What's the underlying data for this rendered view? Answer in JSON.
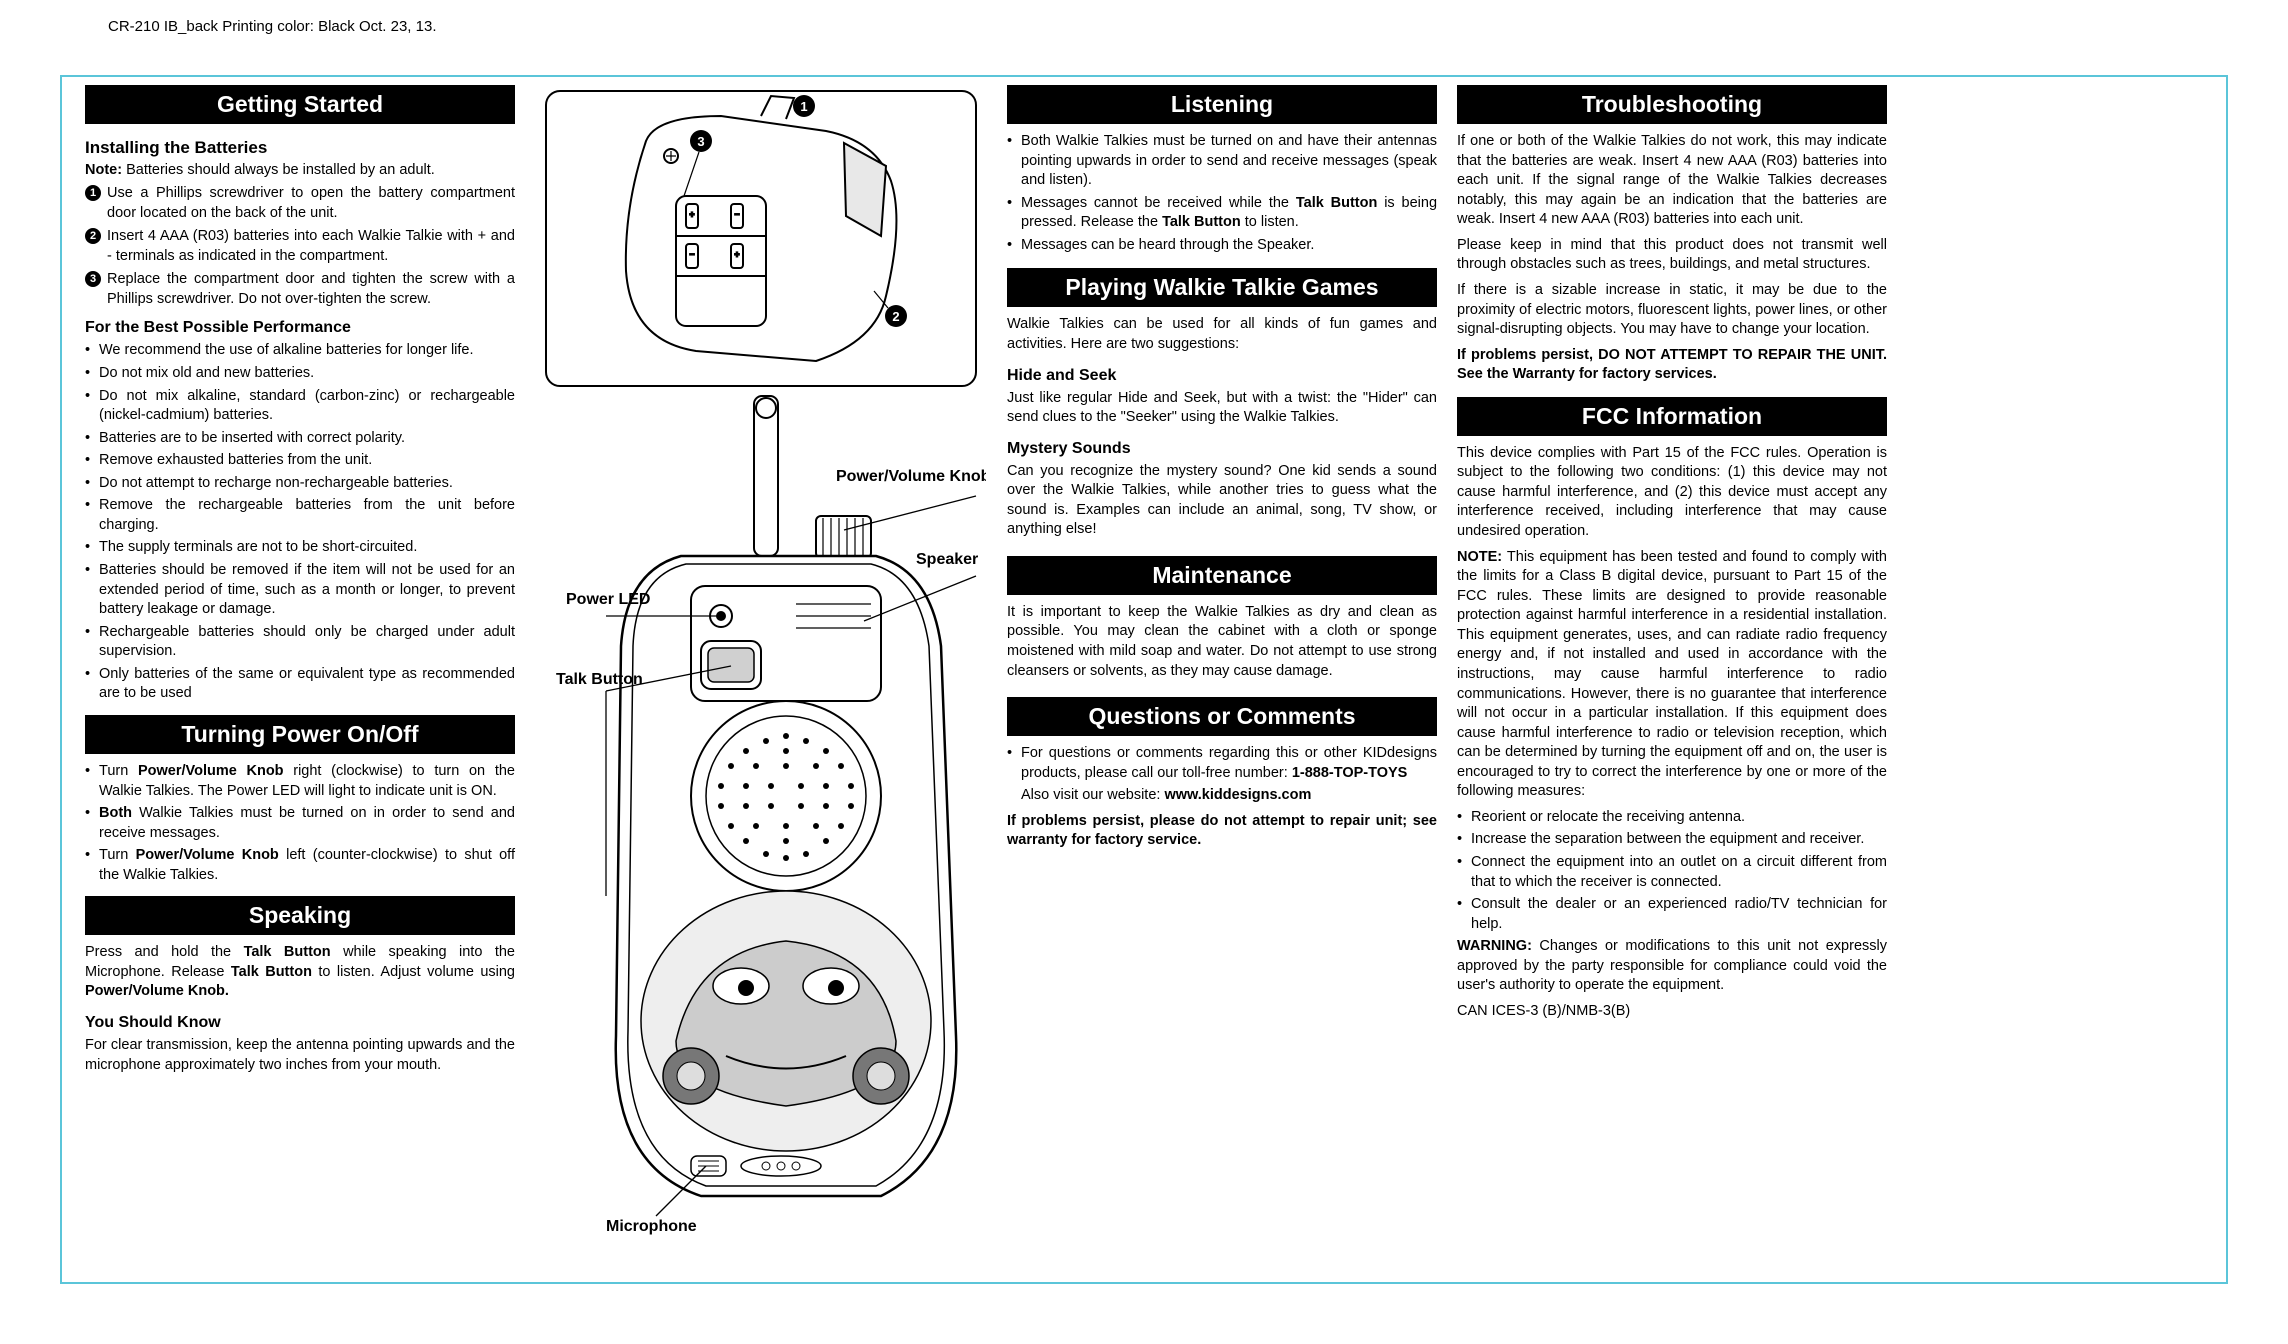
{
  "meta": {
    "header_note": "CR-210 IB_back   Printing color: Black   Oct. 23, 13."
  },
  "col1": {
    "getting_started": {
      "title": "Getting Started",
      "subtitle": "Installing the Batteries",
      "note_prefix": "Note:",
      "note": " Batteries should always be installed by an adult.",
      "steps": [
        "Use a Phillips screwdriver to open the battery compartment door located on the back of the unit.",
        "Insert 4 AAA (R03) batteries into each Walkie Talkie with + and - terminals as indicated in the compartment.",
        "Replace the compartment door and tighten the screw with a Phillips screwdriver. Do not over-tighten the screw."
      ],
      "best_perf_title": "For the Best Possible Performance",
      "best_perf": [
        "We recommend the use of alkaline batteries for longer life.",
        "Do not mix old and new batteries.",
        "Do not mix alkaline, standard (carbon-zinc) or rechargeable (nickel-cadmium) batteries.",
        "Batteries are to be inserted with correct polarity.",
        "Remove exhausted batteries from the unit.",
        "Do not attempt to recharge non-rechargeable batteries.",
        "Remove the rechargeable batteries from the unit before charging.",
        "The supply terminals are not to be short-circuited.",
        "Batteries should be removed if the item will not be used for an extended period of time, such as a month or longer, to prevent battery leakage or damage.",
        "Rechargeable batteries should only be charged under adult supervision.",
        "Only batteries of the same or equivalent type as recommended are to be used"
      ]
    },
    "power": {
      "title": "Turning Power On/Off",
      "items_html": [
        "Turn <b>Power/Volume Knob</b> right (clockwise) to turn on the Walkie Talkies. The Power LED will light to indicate unit is ON.",
        "<b>Both</b> Walkie Talkies must be turned on in order to send and receive messages.",
        "Turn <b>Power/Volume Knob</b> left (counter-clockwise) to shut off the Walkie Talkies."
      ]
    },
    "speaking": {
      "title": "Speaking",
      "para_html": "Press and hold the <b>Talk Button</b> while speaking into the Microphone. Release <b>Talk Button</b> to listen. Adjust volume using <b>Power/Volume Knob.</b>",
      "know_title": "You Should Know",
      "know_text": "For clear transmission, keep the antenna pointing upwards and the microphone approximately two inches from your mouth."
    }
  },
  "diagram": {
    "labels": {
      "power_volume": "Power/Volume Knob",
      "speaker": "Speaker",
      "power_led": "Power LED",
      "talk_button": "Talk Button",
      "microphone": "Microphone"
    },
    "callouts": {
      "n1": "1",
      "n2": "2",
      "n3": "3"
    },
    "colors": {
      "stroke": "#000000",
      "fill": "#ffffff",
      "shade": "#d9d9d9"
    }
  },
  "col3": {
    "listening": {
      "title": "Listening",
      "items_html": [
        "Both Walkie Talkies must be turned on and have their antennas pointing upwards in order to send and receive messages (speak and listen).",
        "Messages cannot be received while the <b>Talk Button</b> is being pressed. Release the <b>Talk Button</b> to listen.",
        "Messages can be heard through the Speaker."
      ]
    },
    "games": {
      "title": "Playing Walkie Talkie Games",
      "intro": "Walkie Talkies can be used for all kinds of fun games and activities. Here are two suggestions:",
      "hide_title": "Hide and Seek",
      "hide_text": "Just like regular Hide and Seek, but with a twist: the \"Hider\" can send clues to the \"Seeker\" using the Walkie Talkies.",
      "myst_title": "Mystery Sounds",
      "myst_text": "Can you recognize the mystery sound?  One kid sends a sound over the Walkie Talkies, while another tries to guess what the sound is.  Examples can include an animal, song, TV show, or anything else!"
    },
    "maintenance": {
      "title": "Maintenance",
      "text": "It is important to keep the Walkie Talkies as dry and clean as possible.  You may clean the cabinet with a cloth or sponge moistened with mild soap and water. Do not attempt to use strong cleansers or solvents, as they may cause damage."
    },
    "questions": {
      "title": "Questions or Comments",
      "bullet_html": "For questions or comments regarding this or other KIDdesigns products, please call our toll-free number: <b>1-888-TOP-TOYS</b>",
      "also_html": "Also visit our website: <b>www.kiddesigns.com</b>",
      "warn_html": "<b>If problems persist, please do not attempt to repair unit; see warranty for factory service.</b>"
    }
  },
  "col4": {
    "trouble": {
      "title": "Troubleshooting",
      "p1": "If one or both of the Walkie Talkies do not work, this may indicate that the batteries are weak.  Insert 4 new AAA (R03) batteries into each unit. If the signal range of the Walkie Talkies decreases notably, this may again be an indication that the batteries are weak.  Insert  4 new AAA (R03) batteries into each unit.",
      "p2": "Please keep in mind that this product does not transmit well through obstacles such as trees, buildings, and metal structures.",
      "p3": "If there is a sizable increase in static, it may be due to the proximity of electric motors, fluorescent lights, power lines, or other signal-disrupting objects.  You may have to change your location.",
      "p4_html": "<b>If problems persist, DO NOT ATTEMPT TO REPAIR THE UNIT. See the Warranty for factory services.</b>"
    },
    "fcc": {
      "title": "FCC Information",
      "p1": "This device complies with Part 15 of the FCC rules. Operation is subject to the following two conditions: (1) this device may not cause harmful interference, and (2) this device must accept any interference received, including interference that may cause undesired operation.",
      "p2_html": "<b>NOTE:</b> This equipment has been tested and found to comply with the limits for a Class B digital device, pursuant to Part 15 of the FCC rules.  These limits are designed to provide reasonable protection against harmful interference in a residential installation. This equipment generates, uses, and can radiate radio frequency energy and, if not installed and used in accordance with the instructions, may cause harmful interference to radio communications.  However, there is no guarantee that interference will not occur in a particular installation. If this equipment does cause harmful interference to radio or television reception, which can be determined by turning the equipment off and on, the user is encouraged to try to correct the interference by one or more of the following measures:",
      "bullets": [
        "Reorient or relocate the receiving antenna.",
        "Increase the separation between the equipment and receiver.",
        "Connect the equipment into an outlet on a circuit different from that to which the receiver is connected.",
        "Consult the dealer or an experienced radio/TV technician for help."
      ],
      "warn_html": "<b>WARNING:</b> Changes or modifications to this unit not expressly approved by the party responsible for compliance could void the user's authority to operate the equipment.",
      "can": "CAN ICES-3 (B)/NMB-3(B)"
    }
  }
}
